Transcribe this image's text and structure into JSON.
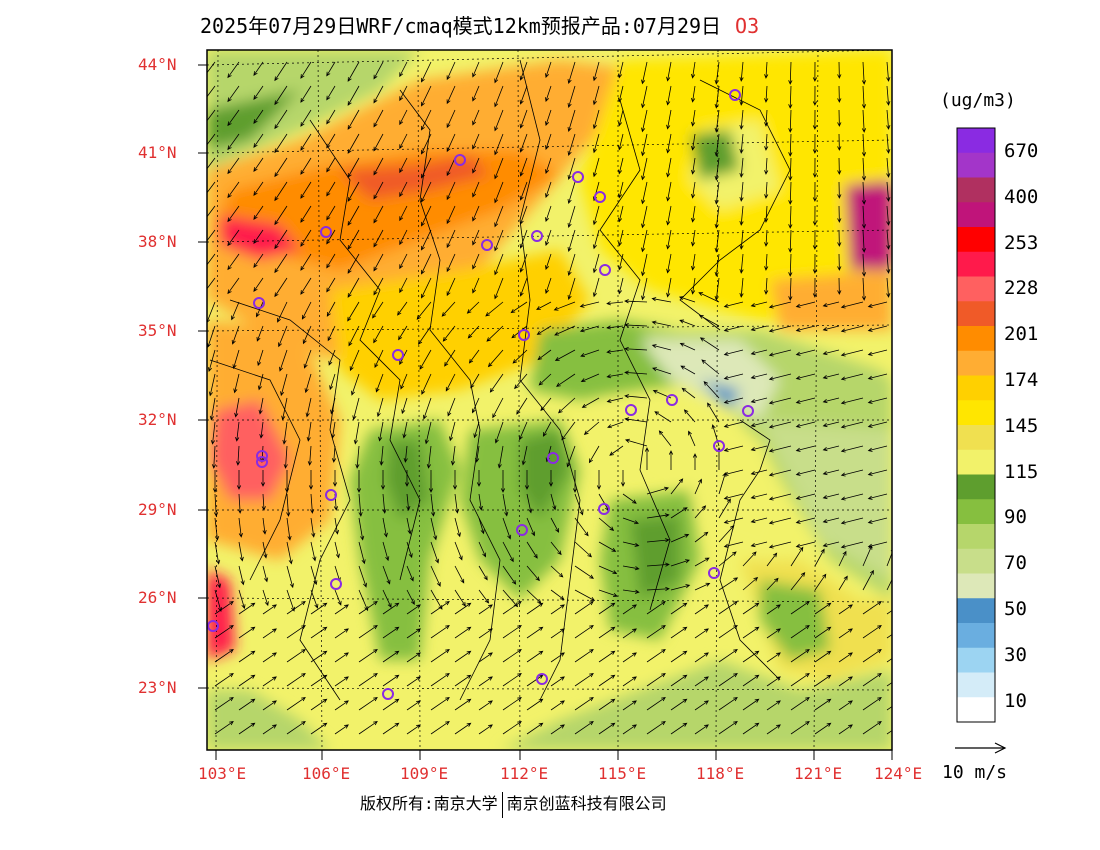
{
  "title": {
    "text": "2025年07月29日WRF/cmaq模式12km预报产品:07月29日",
    "species": "O3"
  },
  "map": {
    "lat_labels": [
      "44°N",
      "41°N",
      "38°N",
      "35°N",
      "32°N",
      "29°N",
      "26°N",
      "23°N"
    ],
    "lon_labels": [
      "103°E",
      "106°E",
      "109°E",
      "112°E",
      "115°E",
      "118°E",
      "121°E",
      "124°E"
    ],
    "stations": 26
  },
  "colorbar": {
    "unit": "(ug/m3)",
    "labels": [
      "670",
      "400",
      "253",
      "228",
      "201",
      "174",
      "145",
      "115",
      "90",
      "70",
      "50",
      "30",
      "10"
    ],
    "colors": [
      "#8a2be2",
      "#a335c9",
      "#b03060",
      "#c0147a",
      "#ff0000",
      "#ff1a4b",
      "#ff6060",
      "#f05a28",
      "#ff8c00",
      "#ffad33",
      "#ffd000",
      "#ffe600",
      "#f0e050",
      "#f2f26a",
      "#5e9e2e",
      "#86bf3f",
      "#b6d66b",
      "#c8de8a",
      "#dde8b8",
      "#4a90c8",
      "#6aaee0",
      "#9cd4f2",
      "#d4ecf8",
      "#ffffff"
    ]
  },
  "wind_scale": {
    "label": "10 m/s"
  },
  "copyright": {
    "part1": "版权所有:南京大学",
    "part2": "南京创蓝科技有限公司"
  }
}
